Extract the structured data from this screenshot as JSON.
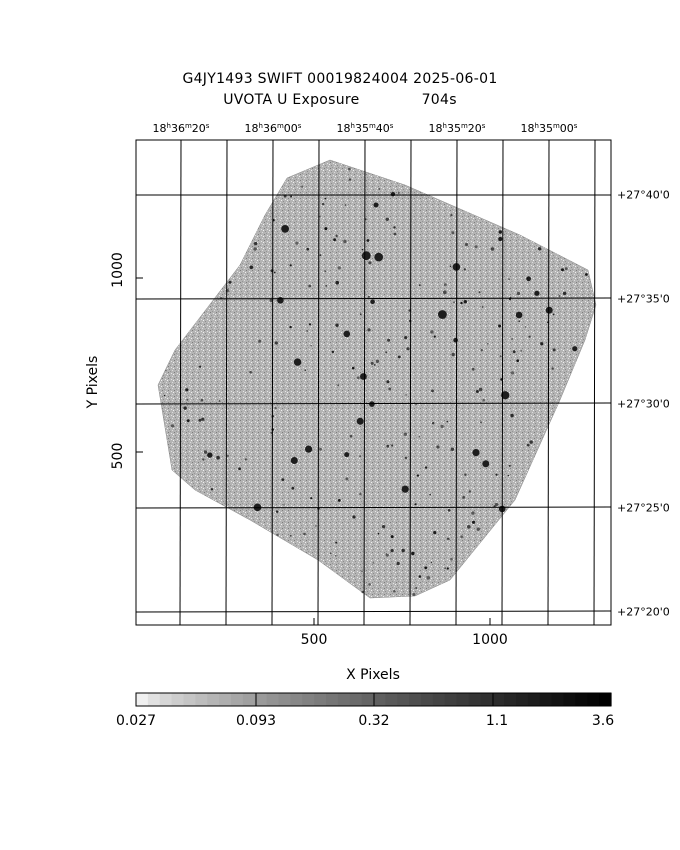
{
  "title_line1": "G4JY1493 SWIFT 00019824004 2025-06-01",
  "title_line2": "UVOTA U Exposure",
  "exposure": "704s",
  "ra_labels": [
    {
      "h": "18",
      "m": "36",
      "s": "20"
    },
    {
      "h": "18",
      "m": "36",
      "s": "00"
    },
    {
      "h": "18",
      "m": "35",
      "s": "40"
    },
    {
      "h": "18",
      "m": "35",
      "s": "20"
    },
    {
      "h": "18",
      "m": "35",
      "s": "00"
    }
  ],
  "dec_labels": [
    "+27°40'0",
    "+27°35'0",
    "+27°30'0",
    "+27°25'0",
    "+27°20'0"
  ],
  "x_ticks": [
    "500",
    "1000"
  ],
  "y_ticks": [
    "1000",
    "500"
  ],
  "x_axis_label": "X Pixels",
  "y_axis_label": "Y Pixels",
  "colorbar_labels": [
    "0.027",
    "0.093",
    "0.32",
    "1.1",
    "3.6"
  ],
  "colors": {
    "frame": "#000000",
    "image_bg": "#a9a9a9",
    "background": "#ffffff"
  }
}
